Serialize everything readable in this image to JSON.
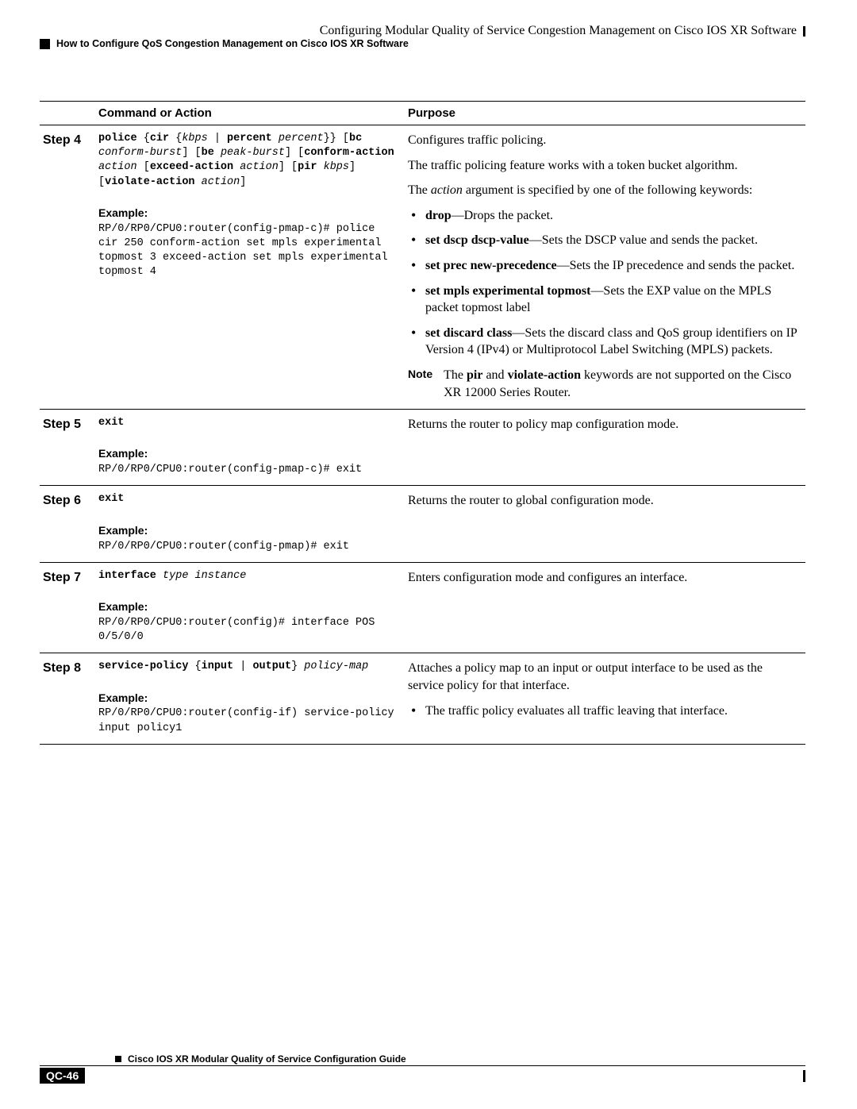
{
  "header": {
    "chapter_title": "Configuring Modular Quality of Service Congestion Management on Cisco IOS XR Software",
    "section_title": "How to Configure QoS Congestion Management on Cisco IOS XR Software"
  },
  "table": {
    "columns": {
      "command": "Command or Action",
      "purpose": "Purpose"
    },
    "steps": [
      {
        "step_label": "Step 4",
        "command_html": "<b>police</b> {<b>cir</b> {<i>kbps</i> | <b>percent</b> <i>percent</i>}} [<b>bc</b> <i>conform-burst</i>] [<b>be</b> <i>peak-burst</i>] [<b>conform-action</b> <i>action</i> [<b>exceed-action</b> <i>action</i>] [<b>pir</b> <i>kbps</i>] [<b>violate-action</b> <i>action</i>]",
        "example_label": "Example:",
        "example_text": "RP/0/RP0/CPU0:router(config-pmap-c)# police cir 250 conform-action set mpls experimental topmost 3 exceed-action set mpls experimental topmost 4",
        "purpose": {
          "intro_paras": [
            "Configures traffic policing.",
            "The traffic policing feature works with a token bucket algorithm.",
            "The <i>action</i> argument is specified by one of the following keywords:"
          ],
          "bullets": [
            "<b>drop</b>—Drops the packet.",
            "<b>set dscp dscp-value</b>—Sets the DSCP value and sends the packet.",
            "<b>set prec new-precedence</b>—Sets the IP precedence and sends the packet.",
            "<b>set mpls experimental topmost</b>—Sets the EXP value on the MPLS packet topmost label",
            "<b>set discard class</b>—Sets the discard class and QoS group identifiers on IP Version 4 (IPv4) or Multiprotocol Label Switching (MPLS) packets."
          ],
          "note_label": "Note",
          "note_text": "The <b>pir</b> and <b>violate-action</b> keywords are not supported on the Cisco XR 12000 Series Router."
        }
      },
      {
        "step_label": "Step 5",
        "command_html": "<b>exit</b>",
        "example_label": "Example:",
        "example_text": "RP/0/RP0/CPU0:router(config-pmap-c)# exit",
        "purpose": {
          "intro_paras": [
            "Returns the router to policy map configuration mode."
          ]
        }
      },
      {
        "step_label": "Step 6",
        "command_html": "<b>exit</b>",
        "example_label": "Example:",
        "example_text": "RP/0/RP0/CPU0:router(config-pmap)# exit",
        "purpose": {
          "intro_paras": [
            "Returns the router to global configuration mode."
          ]
        }
      },
      {
        "step_label": "Step 7",
        "command_html": "<b>interface</b> <i>type instance</i>",
        "example_label": "Example:",
        "example_text": "RP/0/RP0/CPU0:router(config)# interface POS 0/5/0/0",
        "purpose": {
          "intro_paras": [
            "Enters configuration mode and configures an interface."
          ]
        }
      },
      {
        "step_label": "Step 8",
        "command_html": "<b>service-policy</b> {<b>input</b> | <b>output</b>} <i>policy-map</i>",
        "example_label": "Example:",
        "example_text": "RP/0/RP0/CPU0:router(config-if) service-policy input policy1",
        "purpose": {
          "intro_paras": [
            "Attaches a policy map to an input or output interface to be used as the service policy for that interface."
          ],
          "bullets": [
            "The traffic policy evaluates all traffic leaving that interface."
          ]
        }
      }
    ]
  },
  "footer": {
    "guide_title": "Cisco IOS XR Modular Quality of Service Configuration Guide",
    "page_num": "QC-46"
  }
}
